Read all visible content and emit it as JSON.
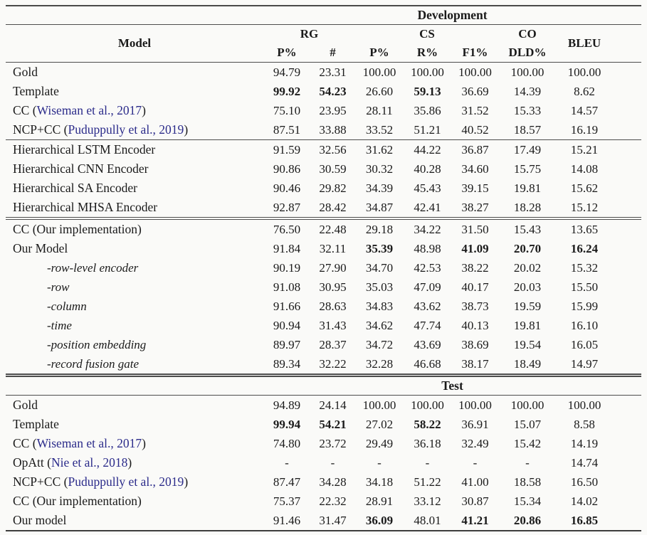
{
  "table": {
    "sections": {
      "development": "Development",
      "test": "Test"
    },
    "header": {
      "model": "Model",
      "groups": [
        {
          "label": "RG",
          "span": 2
        },
        {
          "label": "CS",
          "span": 3
        },
        {
          "label": "CO",
          "span": 1
        }
      ],
      "bleu": "BLEU",
      "subheaders": [
        "P%",
        "#",
        "P%",
        "R%",
        "F1%",
        "DLD%"
      ]
    },
    "dev_rows": [
      {
        "model": {
          "label": "Gold"
        },
        "values": [
          "94.79",
          "23.31",
          "100.00",
          "100.00",
          "100.00",
          "100.00",
          "100.00"
        ]
      },
      {
        "model": {
          "label": "Template"
        },
        "values": [
          "99.92",
          "54.23",
          "26.60",
          "59.13",
          "36.69",
          "14.39",
          "8.62"
        ],
        "bold": [
          0,
          1,
          3
        ]
      },
      {
        "model": {
          "label": "CC (",
          "cite": "Wiseman et al., 2017",
          "suffix": ")"
        },
        "values": [
          "75.10",
          "23.95",
          "28.11",
          "35.86",
          "31.52",
          "15.33",
          "14.57"
        ]
      },
      {
        "model": {
          "label": "NCP+CC (",
          "cite": "Puduppully et al., 2019",
          "suffix": ")"
        },
        "values": [
          "87.51",
          "33.88",
          "33.52",
          "51.21",
          "40.52",
          "18.57",
          "16.19"
        ],
        "rule_after": "single"
      },
      {
        "model": {
          "label": "Hierarchical LSTM Encoder"
        },
        "values": [
          "91.59",
          "32.56",
          "31.62",
          "44.22",
          "36.87",
          "17.49",
          "15.21"
        ]
      },
      {
        "model": {
          "label": "Hierarchical CNN Encoder"
        },
        "values": [
          "90.86",
          "30.59",
          "30.32",
          "40.28",
          "34.60",
          "15.75",
          "14.08"
        ]
      },
      {
        "model": {
          "label": "Hierarchical SA Encoder"
        },
        "values": [
          "90.46",
          "29.82",
          "34.39",
          "45.43",
          "39.15",
          "19.81",
          "15.62"
        ]
      },
      {
        "model": {
          "label": "Hierarchical MHSA Encoder"
        },
        "values": [
          "92.87",
          "28.42",
          "34.87",
          "42.41",
          "38.27",
          "18.28",
          "15.12"
        ],
        "rule_after": "double"
      },
      {
        "model": {
          "label": "CC (Our implementation)"
        },
        "values": [
          "76.50",
          "22.48",
          "29.18",
          "34.22",
          "31.50",
          "15.43",
          "13.65"
        ]
      },
      {
        "model": {
          "label": "Our Model"
        },
        "values": [
          "91.84",
          "32.11",
          "35.39",
          "48.98",
          "41.09",
          "20.70",
          "16.24"
        ],
        "bold": [
          2,
          4,
          5,
          6
        ]
      },
      {
        "model": {
          "label": "-row-level encoder",
          "ablation": true
        },
        "values": [
          "90.19",
          "27.90",
          "34.70",
          "42.53",
          "38.22",
          "20.02",
          "15.32"
        ]
      },
      {
        "model": {
          "label": "-row",
          "ablation": true
        },
        "values": [
          "91.08",
          "30.95",
          "35.03",
          "47.09",
          "40.17",
          "20.03",
          "15.50"
        ]
      },
      {
        "model": {
          "label": "-column",
          "ablation": true
        },
        "values": [
          "91.66",
          "28.63",
          "34.83",
          "43.62",
          "38.73",
          "19.59",
          "15.99"
        ]
      },
      {
        "model": {
          "label": "-time",
          "ablation": true
        },
        "values": [
          "90.94",
          "31.43",
          "34.62",
          "47.74",
          "40.13",
          "19.81",
          "16.10"
        ]
      },
      {
        "model": {
          "label": "-position embedding",
          "ablation": true
        },
        "values": [
          "89.97",
          "28.37",
          "34.72",
          "43.69",
          "38.69",
          "19.54",
          "16.05"
        ]
      },
      {
        "model": {
          "label": "-record fusion gate",
          "ablation": true
        },
        "values": [
          "89.34",
          "32.22",
          "32.28",
          "46.68",
          "38.17",
          "18.49",
          "14.97"
        ]
      }
    ],
    "test_rows": [
      {
        "model": {
          "label": "Gold"
        },
        "values": [
          "94.89",
          "24.14",
          "100.00",
          "100.00",
          "100.00",
          "100.00",
          "100.00"
        ]
      },
      {
        "model": {
          "label": "Template"
        },
        "values": [
          "99.94",
          "54.21",
          "27.02",
          "58.22",
          "36.91",
          "15.07",
          "8.58"
        ],
        "bold": [
          0,
          1,
          3
        ]
      },
      {
        "model": {
          "label": "CC (",
          "cite": "Wiseman et al., 2017",
          "suffix": ")"
        },
        "values": [
          "74.80",
          "23.72",
          "29.49",
          "36.18",
          "32.49",
          "15.42",
          "14.19"
        ]
      },
      {
        "model": {
          "label": "OpAtt (",
          "cite": "Nie et al., 2018",
          "suffix": ")"
        },
        "values": [
          "-",
          "-",
          "-",
          "-",
          "-",
          "-",
          "14.74"
        ]
      },
      {
        "model": {
          "label": "NCP+CC (",
          "cite": "Puduppully et al., 2019",
          "suffix": ")"
        },
        "values": [
          "87.47",
          "34.28",
          "34.18",
          "51.22",
          "41.00",
          "18.58",
          "16.50"
        ]
      },
      {
        "model": {
          "label": "CC (Our implementation)"
        },
        "values": [
          "75.37",
          "22.32",
          "28.91",
          "33.12",
          "30.87",
          "15.34",
          "14.02"
        ]
      },
      {
        "model": {
          "label": "Our model"
        },
        "values": [
          "91.46",
          "31.47",
          "36.09",
          "48.01",
          "41.21",
          "20.86",
          "16.85"
        ],
        "bold": [
          2,
          4,
          5,
          6
        ]
      }
    ]
  },
  "colors": {
    "citation": "#2b2b8a",
    "text": "#1a1a1a",
    "rule": "#4d4d4d",
    "background": "#fafaf8"
  }
}
